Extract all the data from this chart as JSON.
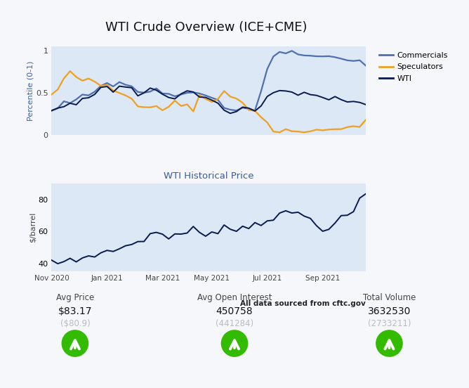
{
  "title": "WTI Crude Overview (ICE+CME)",
  "subplot2_title": "WTI Historical Price",
  "source_text": "All data sourced from cftc.gov",
  "bg_color": "#f5f7fa",
  "plot_bg_color": "#dce8f5",
  "top_chart": {
    "ylabel": "Percentile (0-1)",
    "ylim": [
      0,
      1.05
    ],
    "yticks": [
      0,
      0.5,
      1
    ],
    "ytick_labels": [
      "0",
      "0.5",
      "1"
    ],
    "commercials_color": "#4f6faf",
    "speculators_color": "#f0a020",
    "wti_top_color": "#0a1a4f",
    "legend_labels": [
      "Commercials",
      "Speculators",
      "WTI"
    ],
    "commercials": [
      0.28,
      0.32,
      0.37,
      0.38,
      0.42,
      0.46,
      0.48,
      0.52,
      0.58,
      0.62,
      0.59,
      0.63,
      0.6,
      0.57,
      0.53,
      0.51,
      0.5,
      0.53,
      0.51,
      0.48,
      0.47,
      0.49,
      0.51,
      0.51,
      0.48,
      0.46,
      0.44,
      0.42,
      0.32,
      0.3,
      0.28,
      0.33,
      0.31,
      0.29,
      0.52,
      0.78,
      0.93,
      0.97,
      0.97,
      0.98,
      0.96,
      0.95,
      0.94,
      0.93,
      0.93,
      0.92,
      0.91,
      0.9,
      0.89,
      0.88,
      0.87,
      0.82
    ],
    "speculators": [
      0.5,
      0.55,
      0.68,
      0.74,
      0.69,
      0.61,
      0.66,
      0.63,
      0.59,
      0.58,
      0.53,
      0.51,
      0.46,
      0.43,
      0.32,
      0.33,
      0.37,
      0.33,
      0.32,
      0.31,
      0.38,
      0.35,
      0.38,
      0.3,
      0.46,
      0.43,
      0.4,
      0.43,
      0.49,
      0.45,
      0.42,
      0.37,
      0.28,
      0.27,
      0.22,
      0.15,
      0.05,
      0.04,
      0.05,
      0.05,
      0.04,
      0.04,
      0.05,
      0.05,
      0.06,
      0.07,
      0.06,
      0.06,
      0.08,
      0.1,
      0.12,
      0.17
    ],
    "wti_norm": [
      0.28,
      0.3,
      0.35,
      0.33,
      0.38,
      0.42,
      0.44,
      0.49,
      0.55,
      0.58,
      0.55,
      0.6,
      0.56,
      0.52,
      0.49,
      0.5,
      0.53,
      0.52,
      0.49,
      0.47,
      0.46,
      0.5,
      0.53,
      0.55,
      0.48,
      0.44,
      0.42,
      0.39,
      0.3,
      0.27,
      0.26,
      0.3,
      0.28,
      0.27,
      0.33,
      0.43,
      0.47,
      0.5,
      0.5,
      0.52,
      0.5,
      0.49,
      0.48,
      0.47,
      0.46,
      0.44,
      0.43,
      0.41,
      0.41,
      0.39,
      0.38,
      0.35
    ]
  },
  "bottom_chart": {
    "ylabel": "$/barrel",
    "ylim": [
      35,
      90
    ],
    "yticks": [
      40,
      60,
      80
    ],
    "ytick_labels": [
      "40",
      "60",
      "80"
    ],
    "wti_color": "#0a1a4f",
    "xtick_pos": [
      0,
      9,
      18,
      26,
      35,
      44
    ],
    "xtick_labels": [
      "Nov 2020",
      "Jan 2021",
      "Mar 2021",
      "May 2021",
      "Jul 2021",
      "Sep 2021"
    ],
    "wti_price": [
      40.1,
      40.5,
      41.2,
      42.8,
      42.0,
      43.5,
      44.8,
      46.2,
      45.5,
      47.5,
      48.3,
      49.4,
      50.5,
      52.2,
      54.0,
      55.5,
      58.0,
      59.3,
      58.0,
      57.2,
      56.5,
      58.2,
      59.5,
      60.7,
      59.5,
      58.8,
      60.2,
      61.4,
      62.8,
      61.9,
      61.0,
      62.0,
      63.8,
      64.9,
      66.2,
      67.4,
      68.5,
      69.7,
      70.8,
      71.9,
      71.0,
      69.8,
      67.5,
      64.5,
      62.2,
      63.5,
      64.8,
      67.2,
      69.8,
      73.0,
      78.5,
      83.2
    ]
  },
  "stats": [
    {
      "label": "Avg Price",
      "value": "$83.17",
      "prev": "($80.9)"
    },
    {
      "label": "Avg Open Interest",
      "value": "450758",
      "prev": "(441284)"
    },
    {
      "label": "Total Volume",
      "value": "3632530",
      "prev": "(2733211)"
    }
  ],
  "arrow_color": "#33bb00"
}
